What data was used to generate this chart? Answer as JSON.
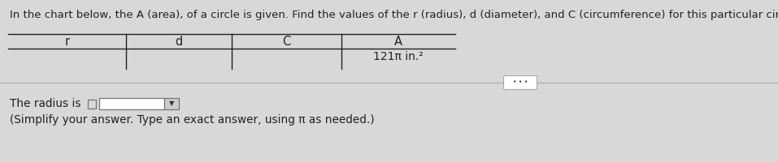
{
  "title": "In the chart below, the A (area), of a circle is given. Find the values of the r (radius), d (diameter), and C (circumference) for this particular circle.",
  "title_fontsize": 9.5,
  "bg_color": "#d8d8d8",
  "table_headers": [
    "r",
    "d",
    "C",
    "A"
  ],
  "table_value": "121π in.²",
  "text_color": "#222222",
  "header_fontsize": 10.5,
  "value_fontsize": 10.0,
  "body_text_fontsize": 9.8,
  "radius_label": "The radius is",
  "simplify_text": "(Simplify your answer. Type an exact answer, using π as needed.)"
}
